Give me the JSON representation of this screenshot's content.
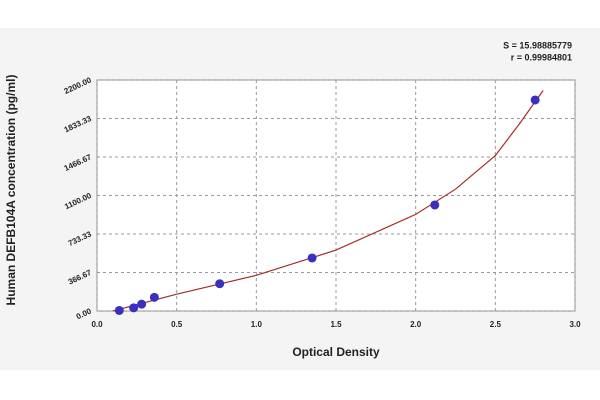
{
  "chart_data": {
    "type": "scatter",
    "x_label": "Optical Density",
    "y_label": "Human DEFB104A concentration (pg/ml)",
    "annotations": [
      "S = 15.98885779",
      "r = 0.99984801"
    ],
    "xlim": [
      0,
      3.0
    ],
    "ylim": [
      0,
      2200
    ],
    "xticks": [
      {
        "value": 0,
        "label": "0.0"
      },
      {
        "value": 0.5,
        "label": "0.5"
      },
      {
        "value": 1,
        "label": "1.0"
      },
      {
        "value": 1.5,
        "label": "1.5"
      },
      {
        "value": 2,
        "label": "2.0"
      },
      {
        "value": 2.5,
        "label": "2.5"
      },
      {
        "value": 3,
        "label": "3.0"
      }
    ],
    "yticks": [
      {
        "value": 0,
        "label": "0.00"
      },
      {
        "value": 366.67,
        "label": "366.67"
      },
      {
        "value": 733.33,
        "label": "733.33"
      },
      {
        "value": 1100,
        "label": "1100.00"
      },
      {
        "value": 1466.67,
        "label": "1466.67"
      },
      {
        "value": 1833.33,
        "label": "1833.33"
      },
      {
        "value": 2200,
        "label": "2200.00"
      }
    ],
    "grid": true,
    "series": [
      {
        "color": "#3a2fc0",
        "x": [
          0.14,
          0.23,
          0.28,
          0.36,
          0.77,
          1.35,
          2.12,
          2.75
        ],
        "values": [
          5,
          30,
          65,
          130,
          260,
          505,
          1010,
          2010
        ]
      }
    ],
    "fit": {
      "color": "#a0302a",
      "x": [
        0.1,
        0.5,
        1.0,
        1.5,
        2.0,
        2.25,
        2.5,
        2.65,
        2.8
      ],
      "values": [
        0,
        160,
        340,
        580,
        920,
        1160,
        1480,
        1780,
        2100
      ]
    }
  }
}
